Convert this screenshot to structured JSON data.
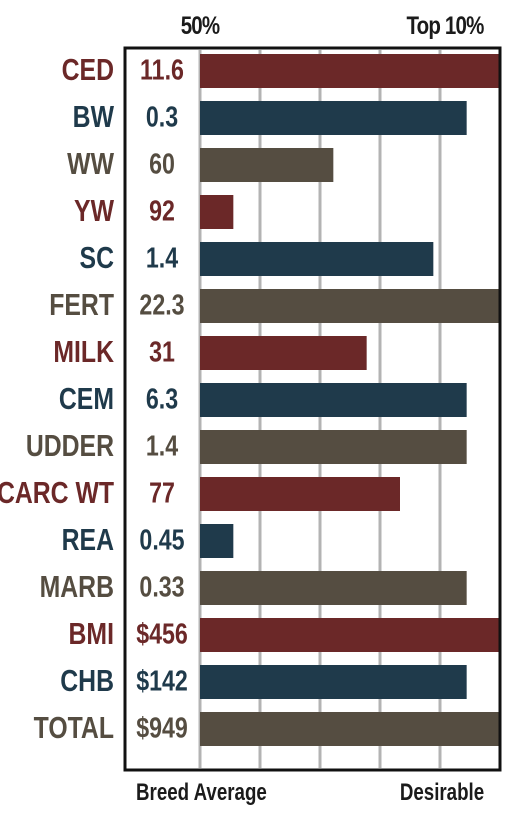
{
  "chart_data": {
    "type": "bar",
    "orientation": "horizontal",
    "top_axis_labels": {
      "left": "50%",
      "right": "Top 10%"
    },
    "bottom_axis_labels": {
      "left": "Breed Average",
      "right": "Desirable"
    },
    "xlim": [
      0,
      9
    ],
    "grid": true,
    "categories": [
      "CED",
      "BW",
      "WW",
      "YW",
      "SC",
      "FERT",
      "MILK",
      "CEM",
      "UDDER",
      "CARC WT",
      "REA",
      "MARB",
      "BMI",
      "CHB",
      "TOTAL"
    ],
    "epd_values": [
      "11.6",
      "0.3",
      "60",
      "92",
      "1.4",
      "22.3",
      "31",
      "6.3",
      "1.4",
      "77",
      "0.45",
      "0.33",
      "$456",
      "$142",
      "$949"
    ],
    "values": [
      9,
      8,
      4,
      1,
      7,
      9,
      5,
      8,
      8,
      6,
      1,
      8,
      9,
      8,
      9
    ],
    "bar_colors": [
      "#6b2828",
      "#1f3a4b",
      "#554d41",
      "#6b2828",
      "#1f3a4b",
      "#554d41",
      "#6b2828",
      "#1f3a4b",
      "#554d41",
      "#6b2828",
      "#1f3a4b",
      "#554d41",
      "#6b2828",
      "#1f3a4b",
      "#554d41"
    ],
    "label_colors": [
      "#6b2828",
      "#1f3a4b",
      "#554d41",
      "#6b2828",
      "#1f3a4b",
      "#554d41",
      "#6b2828",
      "#1f3a4b",
      "#554d41",
      "#6b2828",
      "#1f3a4b",
      "#554d41",
      "#6b2828",
      "#1f3a4b",
      "#554d41"
    ],
    "colors": {
      "gridline": "#b3b3b3",
      "frame": "#111111"
    }
  }
}
